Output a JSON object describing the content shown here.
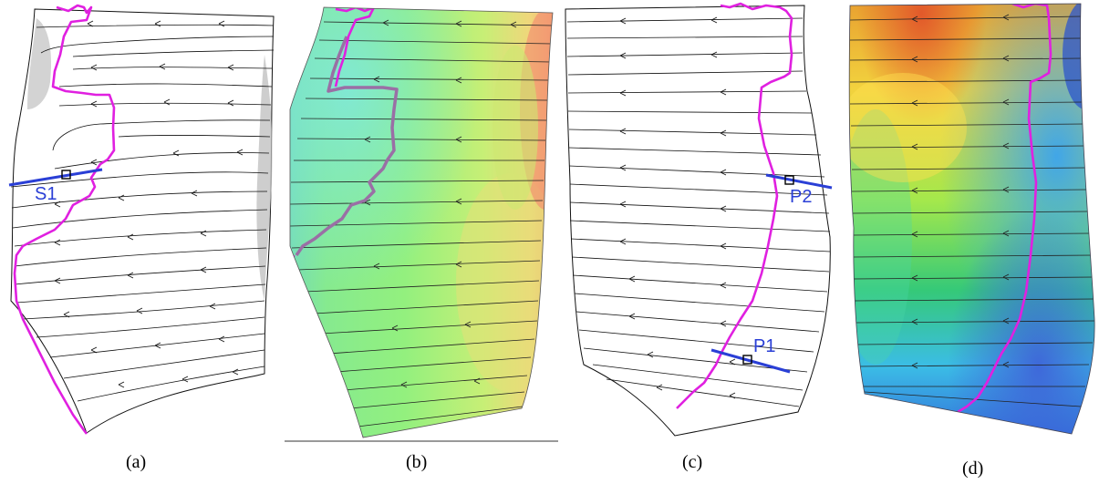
{
  "colors": {
    "separation_line": "#e020e0",
    "probe_line": "#2a3fd6",
    "streamline": "#111111",
    "background": "#ffffff"
  },
  "panels": [
    {
      "id": "a",
      "caption": "(a)",
      "marker": "S1",
      "colormap": "none"
    },
    {
      "id": "b",
      "caption": "(b)",
      "colormap": "blue-green-yellow-red"
    },
    {
      "id": "c",
      "caption": "(c)",
      "markers": [
        "P1",
        "P2"
      ],
      "colormap": "none"
    },
    {
      "id": "d",
      "caption": "(d)",
      "colormap": "blue-cyan-green-yellow-red"
    }
  ],
  "labels": {
    "s1": "S1",
    "p1": "P1",
    "p2": "P2"
  }
}
